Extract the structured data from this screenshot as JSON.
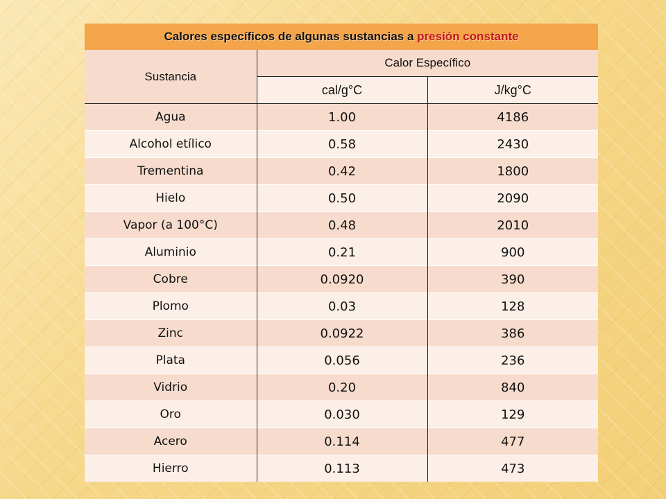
{
  "title": {
    "part1": "Calores específicos de algunas sustancias a ",
    "part2": "presión constante"
  },
  "headers": {
    "substance": "Sustancia",
    "specific_heat": "Calor Específico",
    "unit_cal": "cal/g°C",
    "unit_j": "J/kg°C"
  },
  "rows": [
    {
      "name": "Agua",
      "cal": "1.00",
      "j": "4186"
    },
    {
      "name": "Alcohol etílico",
      "cal": "0.58",
      "j": "2430"
    },
    {
      "name": "Trementina",
      "cal": "0.42",
      "j": "1800"
    },
    {
      "name": "Hielo",
      "cal": "0.50",
      "j": "2090"
    },
    {
      "name": "Vapor (a 100°C)",
      "cal": "0.48",
      "j": "2010"
    },
    {
      "name": "Aluminio",
      "cal": "0.21",
      "j": "900"
    },
    {
      "name": "Cobre",
      "cal": "0.0920",
      "j": "390"
    },
    {
      "name": "Plomo",
      "cal": "0.03",
      "j": "128"
    },
    {
      "name": "Zinc",
      "cal": "0.0922",
      "j": "386"
    },
    {
      "name": "Plata",
      "cal": "0.056",
      "j": "236"
    },
    {
      "name": "Vidrio",
      "cal": "0.20",
      "j": "840"
    },
    {
      "name": "Oro",
      "cal": "0.030",
      "j": "129"
    },
    {
      "name": "Acero",
      "cal": "0.114",
      "j": "477"
    },
    {
      "name": "Hierro",
      "cal": "0.113",
      "j": "473"
    }
  ],
  "colors": {
    "title_bg": "#f4a449",
    "title_accent": "#c0181b",
    "row_dark": "#f7dccd",
    "row_light": "#fcefe8",
    "background": "#f6d88a"
  }
}
